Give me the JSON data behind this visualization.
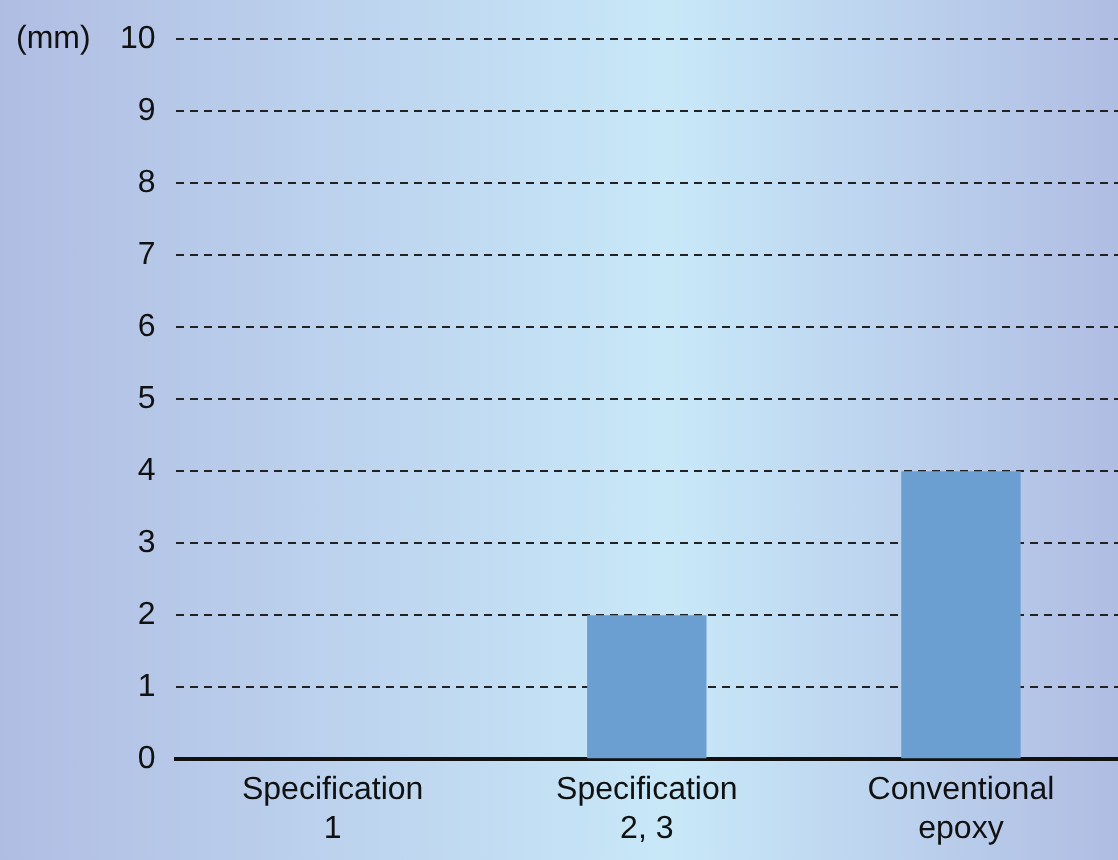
{
  "chart_data": {
    "type": "bar",
    "ylabel": "(mm)",
    "categories": [
      "Specification\n1",
      "Specification\n2, 3",
      "Conventional\nepoxy"
    ],
    "values": [
      0,
      2,
      4
    ],
    "color": "#6b9fd2",
    "ylim": [
      0,
      10
    ],
    "yticks": [
      0,
      1,
      2,
      3,
      4,
      5,
      6,
      7,
      8,
      9,
      10
    ],
    "grid": "y"
  }
}
